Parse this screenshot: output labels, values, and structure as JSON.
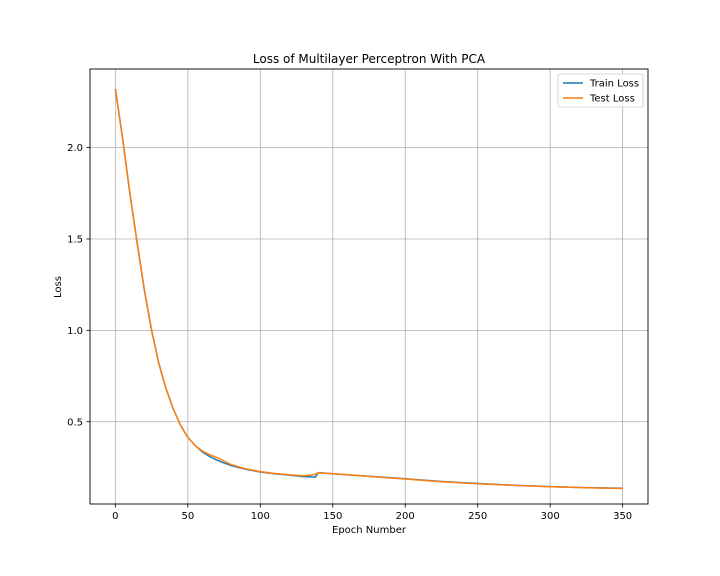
{
  "chart_data": {
    "type": "line",
    "title": "Loss of Multilayer Perceptron With PCA",
    "xlabel": "Epoch Number",
    "ylabel": "Loss",
    "xlim": [
      -17.5,
      367.5
    ],
    "ylim": [
      0.05,
      2.43
    ],
    "xticks": [
      0,
      50,
      100,
      150,
      200,
      250,
      300,
      350
    ],
    "yticks": [
      0.5,
      1.0,
      1.5,
      2.0
    ],
    "ytick_labels": [
      "0.5",
      "1.0",
      "1.5",
      "2.0"
    ],
    "grid": true,
    "legend": "top-right",
    "series": [
      {
        "name": "Train Loss",
        "color": "#1f77b4",
        "x": [
          0,
          5,
          10,
          15,
          20,
          25,
          30,
          35,
          40,
          45,
          50,
          55,
          60,
          65,
          70,
          75,
          80,
          90,
          100,
          110,
          120,
          130,
          135,
          138,
          140,
          150,
          175,
          200,
          225,
          250,
          275,
          300,
          325,
          350
        ],
        "y": [
          2.32,
          2.05,
          1.75,
          1.48,
          1.22,
          1.0,
          0.82,
          0.68,
          0.57,
          0.48,
          0.415,
          0.37,
          0.335,
          0.31,
          0.29,
          0.275,
          0.26,
          0.24,
          0.225,
          0.215,
          0.208,
          0.2,
          0.198,
          0.197,
          0.222,
          0.216,
          0.202,
          0.188,
          0.173,
          0.162,
          0.153,
          0.145,
          0.14,
          0.136
        ]
      },
      {
        "name": "Test Loss",
        "color": "#ff7f0e",
        "x": [
          0,
          5,
          10,
          15,
          20,
          25,
          30,
          35,
          40,
          45,
          50,
          55,
          60,
          65,
          70,
          75,
          80,
          90,
          100,
          110,
          120,
          130,
          135,
          138,
          140,
          150,
          175,
          200,
          225,
          250,
          275,
          300,
          325,
          350
        ],
        "y": [
          2.32,
          2.05,
          1.75,
          1.48,
          1.22,
          1.0,
          0.82,
          0.68,
          0.57,
          0.48,
          0.415,
          0.37,
          0.34,
          0.32,
          0.305,
          0.285,
          0.265,
          0.242,
          0.227,
          0.217,
          0.21,
          0.204,
          0.208,
          0.213,
          0.22,
          0.215,
          0.201,
          0.187,
          0.172,
          0.161,
          0.152,
          0.144,
          0.139,
          0.135
        ]
      }
    ]
  }
}
